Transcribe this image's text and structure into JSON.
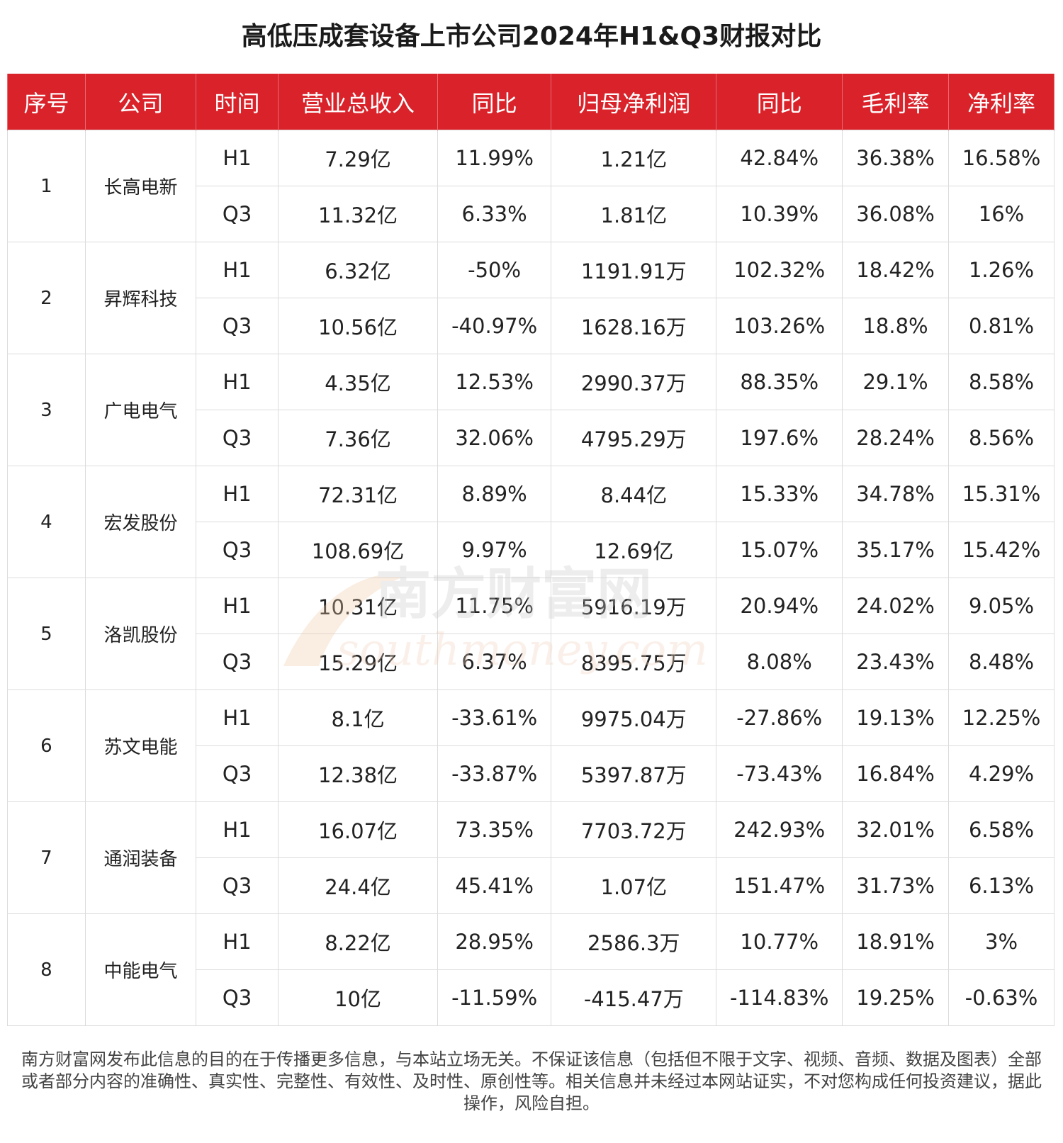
{
  "chart_data": {
    "type": "table",
    "title": "高低压成套设备上市公司2024年H1&Q3财报对比",
    "columns": [
      "序号",
      "公司",
      "时间",
      "营业总收入",
      "同比",
      "归母净利润",
      "同比",
      "毛利率",
      "净利率"
    ],
    "companies": [
      {
        "index": "1",
        "name": "长高电新",
        "rows": [
          [
            "H1",
            "7.29亿",
            "11.99%",
            "1.21亿",
            "42.84%",
            "36.38%",
            "16.58%"
          ],
          [
            "Q3",
            "11.32亿",
            "6.33%",
            "1.81亿",
            "10.39%",
            "36.08%",
            "16%"
          ]
        ]
      },
      {
        "index": "2",
        "name": "昇辉科技",
        "rows": [
          [
            "H1",
            "6.32亿",
            "-50%",
            "1191.91万",
            "102.32%",
            "18.42%",
            "1.26%"
          ],
          [
            "Q3",
            "10.56亿",
            "-40.97%",
            "1628.16万",
            "103.26%",
            "18.8%",
            "0.81%"
          ]
        ]
      },
      {
        "index": "3",
        "name": "广电电气",
        "rows": [
          [
            "H1",
            "4.35亿",
            "12.53%",
            "2990.37万",
            "88.35%",
            "29.1%",
            "8.58%"
          ],
          [
            "Q3",
            "7.36亿",
            "32.06%",
            "4795.29万",
            "197.6%",
            "28.24%",
            "8.56%"
          ]
        ]
      },
      {
        "index": "4",
        "name": "宏发股份",
        "rows": [
          [
            "H1",
            "72.31亿",
            "8.89%",
            "8.44亿",
            "15.33%",
            "34.78%",
            "15.31%"
          ],
          [
            "Q3",
            "108.69亿",
            "9.97%",
            "12.69亿",
            "15.07%",
            "35.17%",
            "15.42%"
          ]
        ]
      },
      {
        "index": "5",
        "name": "洛凯股份",
        "rows": [
          [
            "H1",
            "10.31亿",
            "11.75%",
            "5916.19万",
            "20.94%",
            "24.02%",
            "9.05%"
          ],
          [
            "Q3",
            "15.29亿",
            "6.37%",
            "8395.75万",
            "8.08%",
            "23.43%",
            "8.48%"
          ]
        ]
      },
      {
        "index": "6",
        "name": "苏文电能",
        "rows": [
          [
            "H1",
            "8.1亿",
            "-33.61%",
            "9975.04万",
            "-27.86%",
            "19.13%",
            "12.25%"
          ],
          [
            "Q3",
            "12.38亿",
            "-33.87%",
            "5397.87万",
            "-73.43%",
            "16.84%",
            "4.29%"
          ]
        ]
      },
      {
        "index": "7",
        "name": "通润装备",
        "rows": [
          [
            "H1",
            "16.07亿",
            "73.35%",
            "7703.72万",
            "242.93%",
            "32.01%",
            "6.58%"
          ],
          [
            "Q3",
            "24.4亿",
            "45.41%",
            "1.07亿",
            "151.47%",
            "31.73%",
            "6.13%"
          ]
        ]
      },
      {
        "index": "8",
        "name": "中能电气",
        "rows": [
          [
            "H1",
            "8.22亿",
            "28.95%",
            "2586.3万",
            "10.77%",
            "18.91%",
            "3%"
          ],
          [
            "Q3",
            "10亿",
            "-11.59%",
            "-415.47万",
            "-114.83%",
            "19.25%",
            "-0.63%"
          ]
        ]
      }
    ]
  },
  "watermark": {
    "cn": "南方财富网",
    "en": "southmoney.com"
  },
  "footer": "南方财富网发布此信息的目的在于传播更多信息，与本站立场无关。不保证该信息（包括但不限于文字、视频、音频、数据及图表）全部或者部分内容的准确性、真实性、完整性、有效性、及时性、原创性等。相关信息并未经过本网站证实，不对您构成任何投资建议，据此操作，风险自担。",
  "colors": {
    "header_bg": "#d9222a",
    "header_text": "#ffffff",
    "grid": "#dcdcdc"
  }
}
